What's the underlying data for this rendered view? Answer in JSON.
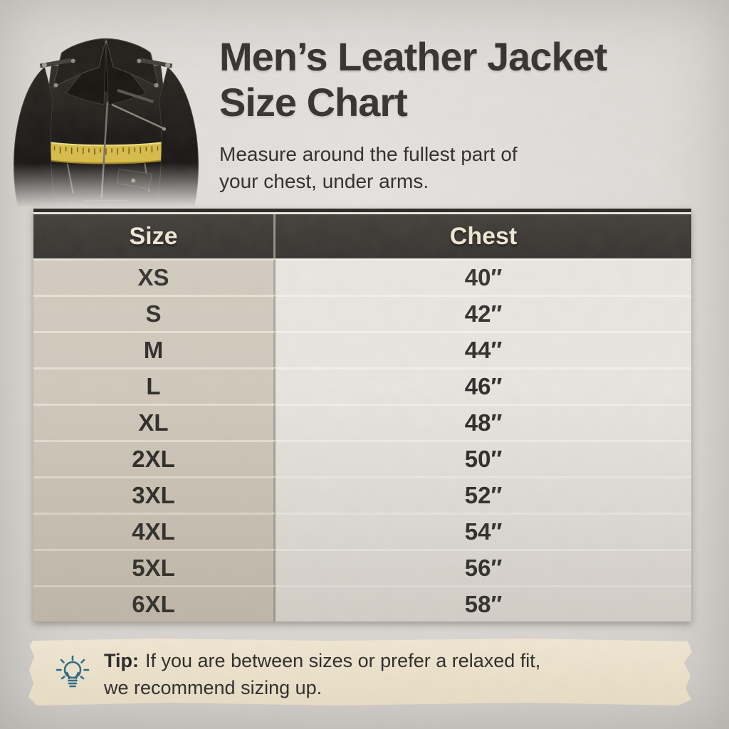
{
  "header": {
    "title_line1": "Men’s Leather Jacket",
    "title_line2": "Size Chart",
    "subtitle_line1": "Measure around the fullest part of",
    "subtitle_line2": "your chest, under arms.",
    "image": "black-leather-biker-jacket-with-yellow-measuring-tape-around-chest"
  },
  "size_chart": {
    "columns": [
      "Size",
      "Chest"
    ],
    "rows": [
      {
        "size": "XS",
        "chest": "40″"
      },
      {
        "size": "S",
        "chest": "42″"
      },
      {
        "size": "M",
        "chest": "44″"
      },
      {
        "size": "L",
        "chest": "46″"
      },
      {
        "size": "XL",
        "chest": "48″"
      },
      {
        "size": "2XL",
        "chest": "50″"
      },
      {
        "size": "3XL",
        "chest": "52″"
      },
      {
        "size": "4XL",
        "chest": "54″"
      },
      {
        "size": "5XL",
        "chest": "56″"
      },
      {
        "size": "6XL",
        "chest": "58″"
      }
    ]
  },
  "tip": {
    "icon": "lightbulb-icon",
    "label": "Tip:",
    "line1": "If you are between sizes or prefer a relaxed fit,",
    "line2": "we recommend sizing up."
  },
  "colors": {
    "page_bg": "#dcd9d5",
    "table_header_bg": "#3b3733",
    "table_header_text": "#f1e8d6",
    "size_column_bg": "#d2cabd",
    "chest_column_bg": "#eae7e2",
    "column_divider": "#a9a59c",
    "text_dark": "#2b2a27",
    "tip_banner_bg": "#ede3ce",
    "tip_icon": "#2c6b85",
    "measuring_tape_yellow": "#d9bd49"
  }
}
